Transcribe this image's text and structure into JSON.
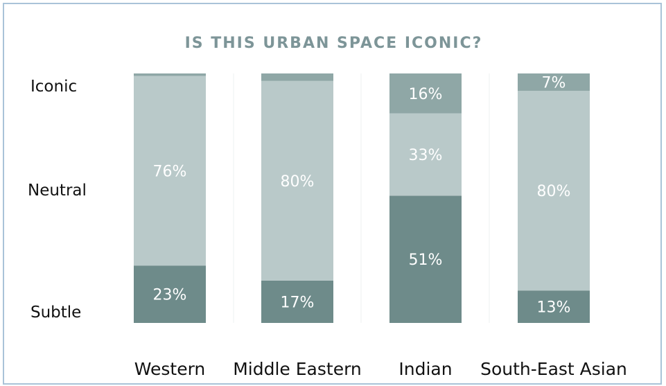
{
  "chart_data": {
    "type": "bar",
    "stacked": true,
    "title": "IS THIS URBAN SPACE ICONIC?",
    "categories": [
      "Western",
      "Middle Eastern",
      "Indian",
      "South-East Asian"
    ],
    "y_levels": [
      "Iconic",
      "Neutral",
      "Subtle"
    ],
    "ylim": [
      0,
      100
    ],
    "series": [
      {
        "name": "Subtle",
        "values": [
          23,
          17,
          51,
          13
        ],
        "labels": [
          "23%",
          "17%",
          "51%",
          "13%"
        ],
        "color": "#6e8b8a"
      },
      {
        "name": "Neutral",
        "values": [
          76,
          80,
          33,
          80
        ],
        "labels": [
          "76%",
          "80%",
          "33%",
          "80%"
        ],
        "color": "#b9c9c9"
      },
      {
        "name": "Iconic",
        "values": [
          1,
          3,
          16,
          7
        ],
        "labels": [
          "",
          "",
          "16%",
          "7%"
        ],
        "color": "#8fa7a6"
      }
    ],
    "legend": "none",
    "grid": "vertical separators"
  }
}
